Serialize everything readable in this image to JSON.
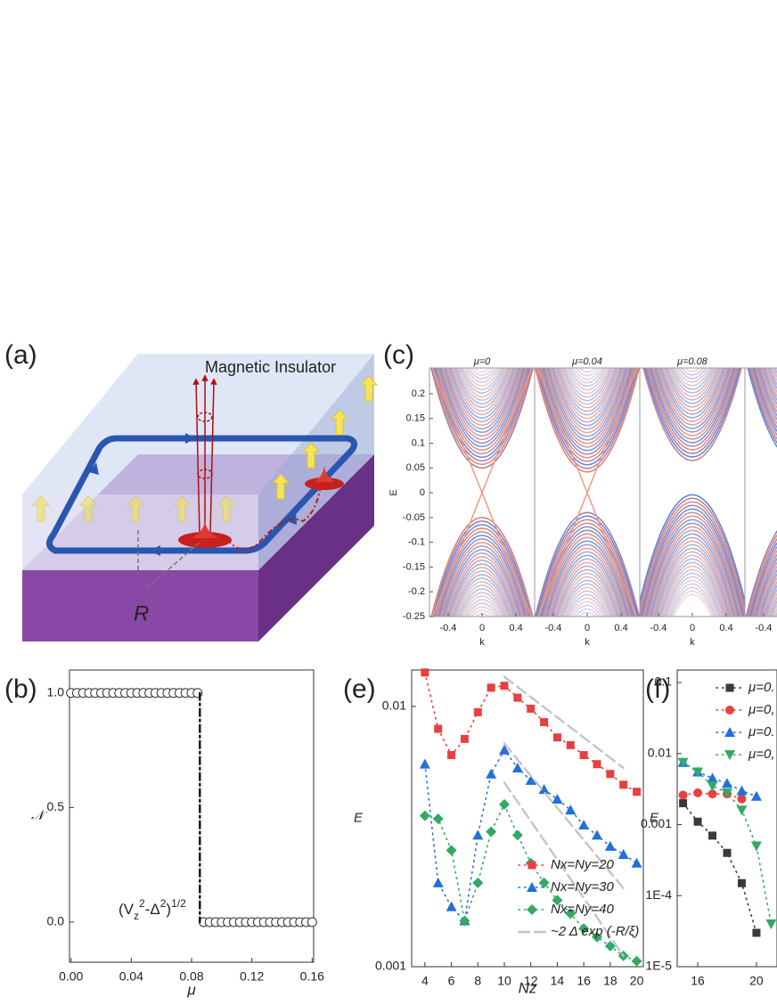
{
  "diagram": {
    "panel_label": "(a)",
    "title": "Magnetic Insulator",
    "r_label": "R"
  },
  "chart_data": [
    {
      "type": "band",
      "panel_label": "(c)",
      "ylabel": "E",
      "xlabel": "k",
      "panel_titles": [
        "μ=0",
        "μ=0.04",
        "μ=0.08"
      ],
      "xlim": [
        -0.62,
        0.62
      ],
      "ylim": [
        -0.25,
        0.252
      ],
      "xticks": [
        -0.4,
        0,
        0.4
      ],
      "yticks": [
        0.2,
        0.15,
        0.1,
        0.05,
        0,
        -0.05,
        -0.1,
        -0.15,
        -0.2,
        -0.25
      ]
    },
    {
      "type": "scatter",
      "panel_label": "(b)",
      "ylabel": "𝒩",
      "xlabel": "μ",
      "xlim": [
        -0.001,
        0.161
      ],
      "ylim": [
        -0.175,
        1.1
      ],
      "xticks": [
        {
          "value": 0,
          "label": "0.00"
        },
        {
          "value": 0.04,
          "label": "0.04"
        },
        {
          "value": 0.08,
          "label": "0.08"
        },
        {
          "value": 0.12,
          "label": "0.12"
        },
        {
          "value": 0.16,
          "label": "0.16"
        }
      ],
      "yticks": [
        {
          "value": 0,
          "label": "0.0"
        },
        {
          "value": 0.5,
          "label": "0.5"
        },
        {
          "value": 1,
          "label": "1.0"
        }
      ],
      "annotation": [
        "(V",
        "z",
        "2",
        "-Δ",
        "2",
        ")",
        "1/2"
      ],
      "series": [
        {
          "color": "#333333",
          "marker": "open-circle",
          "x": [
            0,
            0.004,
            0.008,
            0.012,
            0.016,
            0.02,
            0.024,
            0.028,
            0.032,
            0.036,
            0.04,
            0.044,
            0.048,
            0.052,
            0.056,
            0.06,
            0.064,
            0.068,
            0.072,
            0.076,
            0.08,
            0.084,
            0.088,
            0.092,
            0.096,
            0.1,
            0.104,
            0.108,
            0.112,
            0.116,
            0.12,
            0.124,
            0.128,
            0.132,
            0.136,
            0.14,
            0.144,
            0.148,
            0.152,
            0.156,
            0.16
          ],
          "values": [
            1,
            1,
            1,
            1,
            1,
            1,
            1,
            1,
            1,
            1,
            1,
            1,
            1,
            1,
            1,
            1,
            1,
            1,
            1,
            1,
            1,
            1,
            0,
            0,
            0,
            0,
            0,
            0,
            0,
            0,
            0,
            0,
            0,
            0,
            0,
            0,
            0,
            0,
            0,
            0,
            0
          ]
        },
        {
          "color": "#111111",
          "line": "dashdot",
          "x": [
            0.0855,
            0.0855
          ],
          "values": [
            1,
            0
          ]
        }
      ]
    },
    {
      "type": "scatter",
      "panel_label": "(e)",
      "ylabel": "E",
      "xlabel": "Nz",
      "ylog": true,
      "xlim": [
        3,
        20.5
      ],
      "ylim": [
        0.001,
        0.0138
      ],
      "xticks": [
        4,
        6,
        8,
        10,
        12,
        14,
        16,
        18,
        20
      ],
      "yticks": [
        0.01,
        0.001
      ],
      "series": [
        {
          "name": "Nx=Ny=20",
          "color": "#e8403f",
          "marker": "square",
          "line": "dotted",
          "x": [
            4,
            5,
            6,
            7,
            8,
            9,
            10,
            11,
            12,
            13,
            14,
            15,
            16,
            17,
            18,
            19,
            20
          ],
          "values": [
            0.0135,
            0.0082,
            0.0065,
            0.0075,
            0.0095,
            0.0118,
            0.012,
            0.0108,
            0.0098,
            0.0087,
            0.0076,
            0.0071,
            0.0065,
            0.006,
            0.0055,
            0.005,
            0.0047
          ]
        },
        {
          "name": "Nx=Ny=30",
          "color": "#2270d8",
          "marker": "triangle",
          "line": "dotted",
          "x": [
            4,
            5,
            6,
            7,
            8,
            9,
            10,
            11,
            12,
            13,
            14,
            15,
            16,
            17,
            18,
            19,
            20
          ],
          "values": [
            0.006,
            0.0021,
            0.0017,
            0.0015,
            0.0032,
            0.0055,
            0.0068,
            0.0058,
            0.0052,
            0.0048,
            0.0044,
            0.004,
            0.0035,
            0.0032,
            0.0029,
            0.0027,
            0.0025
          ]
        },
        {
          "name": "Nx=Ny=40",
          "color": "#34a865",
          "marker": "diamond",
          "line": "dotted",
          "x": [
            4,
            5,
            6,
            7,
            8,
            9,
            10,
            11,
            12,
            13,
            14,
            15,
            16,
            17,
            18,
            19,
            20
          ],
          "values": [
            0.0038,
            0.0037,
            0.0028,
            0.0015,
            0.0021,
            0.0033,
            0.0042,
            0.0032,
            0.0025,
            0.0021,
            0.0018,
            0.0016,
            0.0014,
            0.0013,
            0.0012,
            0.0011,
            0.00105
          ]
        },
        {
          "name": "~2 Δ exp (-R/ξ)",
          "color": "#c4c4c4",
          "line": "dashed",
          "x": [
            10,
            19
          ],
          "values": [
            0.013,
            0.0058
          ]
        },
        {
          "color": "#c4c4c4",
          "line": "dashed",
          "x": [
            10,
            19
          ],
          "values": [
            0.0072,
            0.002
          ]
        },
        {
          "color": "#c4c4c4",
          "line": "dashed",
          "x": [
            10,
            19
          ],
          "values": [
            0.0051,
            0.0011
          ]
        }
      ]
    },
    {
      "type": "scatter",
      "panel_label": "(f)",
      "ylabel": "E",
      "ylog": true,
      "xlim": [
        14.6,
        21.4
      ],
      "ylim": [
        1e-05,
        0.15
      ],
      "xticks": [
        16,
        20
      ],
      "yticks": [
        0.1,
        0.01,
        0.001,
        {
          "value": 0.0001,
          "label": "1E-4"
        },
        {
          "value": 1e-05,
          "label": "1E-5"
        }
      ],
      "series": [
        {
          "name": "μ=0.",
          "color": "#3a3a3a",
          "marker": "square",
          "line": "dotted",
          "x": [
            15,
            16,
            17,
            18,
            19,
            20
          ],
          "values": [
            0.002,
            0.0011,
            0.0007,
            0.0004,
            0.00015,
            3e-05
          ]
        },
        {
          "name": "μ=0,",
          "color": "#e8403f",
          "marker": "circle",
          "line": "dotted",
          "x": [
            15,
            16,
            17,
            18,
            19
          ],
          "values": [
            0.0026,
            0.0028,
            0.0027,
            0.0027,
            0.0023
          ]
        },
        {
          "name": "μ=0.",
          "color": "#2270d8",
          "marker": "triangle",
          "line": "dotted",
          "x": [
            15,
            16,
            17,
            18,
            19,
            20
          ],
          "values": [
            0.0075,
            0.0055,
            0.0045,
            0.0038,
            0.003,
            0.0025
          ]
        },
        {
          "name": "μ=0,",
          "color": "#34a865",
          "marker": "tri-down",
          "line": "dotted",
          "x": [
            15,
            16,
            17,
            18,
            19,
            20,
            21
          ],
          "values": [
            0.0075,
            0.0055,
            0.0035,
            0.0028,
            0.0016,
            0.0005,
            4e-05
          ]
        }
      ]
    }
  ]
}
